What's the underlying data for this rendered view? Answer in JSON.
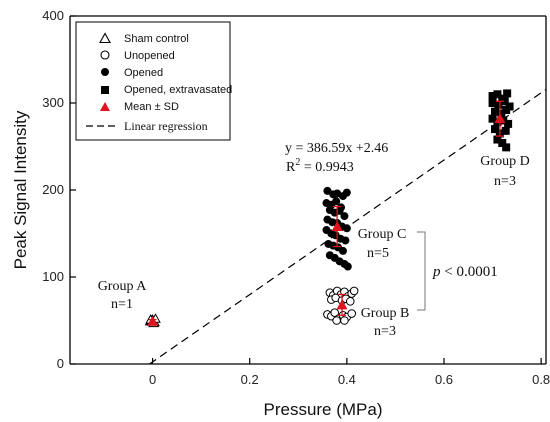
{
  "chart_data": {
    "type": "scatter",
    "xlabel": "Pressure (MPa)",
    "ylabel": "Peak Signal Intensity",
    "xlim": [
      -0.17,
      0.81
    ],
    "ylim": [
      0,
      400
    ],
    "x_ticks": [
      0,
      0.2,
      0.4,
      0.6,
      0.8
    ],
    "x_tick_labels": [
      "0",
      "0.2",
      "0.4",
      "0.6",
      "0.8"
    ],
    "y_ticks": [
      0,
      100,
      200,
      300,
      400
    ],
    "y_tick_labels": [
      "0",
      "100",
      "200",
      "300",
      "400"
    ],
    "grid": false,
    "legend_position": "top-left",
    "legend": [
      {
        "label": "Sham control",
        "marker": "open-triangle"
      },
      {
        "label": "Unopened",
        "marker": "open-circle"
      },
      {
        "label": "Opened",
        "marker": "filled-circle"
      },
      {
        "label": "Opened, extravasated",
        "marker": "filled-square"
      },
      {
        "label": "Mean ± SD",
        "marker": "red-triangle"
      },
      {
        "label": "Linear regression",
        "marker": "dashed-line"
      }
    ],
    "regression": {
      "slope": 386.59,
      "intercept": 2.46,
      "equation_text": "y = 386.59x +2.46",
      "r2_text": "R",
      "r2_sup": "2",
      "r2_value_text": " = 0.9943"
    },
    "series": [
      {
        "name": "Sham control",
        "marker": "open-triangle",
        "points": [
          [
            -0.005,
            49
          ],
          [
            0.0,
            51
          ],
          [
            0.004,
            48
          ],
          [
            -0.002,
            50
          ],
          [
            0.006,
            52
          ],
          [
            0.002,
            47
          ],
          [
            -0.004,
            51
          ]
        ]
      },
      {
        "name": "Unopened",
        "marker": "open-circle",
        "points": [
          [
            0.365,
            82
          ],
          [
            0.372,
            79
          ],
          [
            0.38,
            84
          ],
          [
            0.388,
            80
          ],
          [
            0.395,
            83
          ],
          [
            0.403,
            78
          ],
          [
            0.41,
            81
          ],
          [
            0.368,
            74
          ],
          [
            0.377,
            76
          ],
          [
            0.39,
            73
          ],
          [
            0.398,
            75
          ],
          [
            0.407,
            72
          ],
          [
            0.415,
            84
          ],
          [
            0.36,
            57
          ],
          [
            0.368,
            55
          ],
          [
            0.375,
            59
          ],
          [
            0.383,
            52
          ],
          [
            0.392,
            56
          ],
          [
            0.4,
            54
          ],
          [
            0.41,
            58
          ],
          [
            0.379,
            50
          ],
          [
            0.395,
            50
          ]
        ]
      },
      {
        "name": "Opened",
        "marker": "filled-circle",
        "points": [
          [
            0.36,
            199
          ],
          [
            0.372,
            195
          ],
          [
            0.38,
            196
          ],
          [
            0.392,
            193
          ],
          [
            0.4,
            197
          ],
          [
            0.358,
            185
          ],
          [
            0.368,
            183
          ],
          [
            0.378,
            187
          ],
          [
            0.388,
            180
          ],
          [
            0.365,
            177
          ],
          [
            0.375,
            174
          ],
          [
            0.385,
            176
          ],
          [
            0.395,
            170
          ],
          [
            0.36,
            166
          ],
          [
            0.37,
            163
          ],
          [
            0.38,
            162
          ],
          [
            0.39,
            158
          ],
          [
            0.4,
            156
          ],
          [
            0.358,
            154
          ],
          [
            0.368,
            150
          ],
          [
            0.377,
            148
          ],
          [
            0.387,
            144
          ],
          [
            0.397,
            142
          ],
          [
            0.362,
            138
          ],
          [
            0.372,
            136
          ],
          [
            0.382,
            134
          ],
          [
            0.392,
            130
          ],
          [
            0.365,
            125
          ],
          [
            0.375,
            122
          ],
          [
            0.385,
            118
          ],
          [
            0.395,
            115
          ],
          [
            0.402,
            112
          ]
        ]
      },
      {
        "name": "Opened, extravasated",
        "marker": "filled-square",
        "points": [
          [
            0.7,
            308
          ],
          [
            0.71,
            310
          ],
          [
            0.72,
            305
          ],
          [
            0.73,
            311
          ],
          [
            0.7,
            300
          ],
          [
            0.712,
            298
          ],
          [
            0.725,
            302
          ],
          [
            0.735,
            296
          ],
          [
            0.705,
            290
          ],
          [
            0.718,
            288
          ],
          [
            0.728,
            292
          ],
          [
            0.7,
            282
          ],
          [
            0.71,
            278
          ],
          [
            0.722,
            280
          ],
          [
            0.732,
            276
          ],
          [
            0.705,
            270
          ],
          [
            0.715,
            265
          ],
          [
            0.727,
            268
          ],
          [
            0.71,
            258
          ],
          [
            0.72,
            254
          ],
          [
            0.728,
            249
          ]
        ]
      },
      {
        "name": "Mean ± SD",
        "marker": "red-triangle",
        "points": [
          {
            "x": 0.0,
            "y": 49,
            "sd": 2
          },
          {
            "x": 0.38,
            "y": 158,
            "sd": 23
          },
          {
            "x": 0.39,
            "y": 68,
            "sd": 12
          },
          {
            "x": 0.715,
            "y": 282,
            "sd": 20
          }
        ]
      }
    ],
    "annotations": {
      "group_a": {
        "name": "Group A",
        "n": "n=1"
      },
      "group_b": {
        "name": "Group B",
        "n": "n=3"
      },
      "group_c": {
        "name": "Group C",
        "n": "n=5"
      },
      "group_d": {
        "name": "Group D",
        "n": "n=3"
      },
      "significance": {
        "p": "p",
        "rest": " < 0.0001"
      }
    }
  }
}
